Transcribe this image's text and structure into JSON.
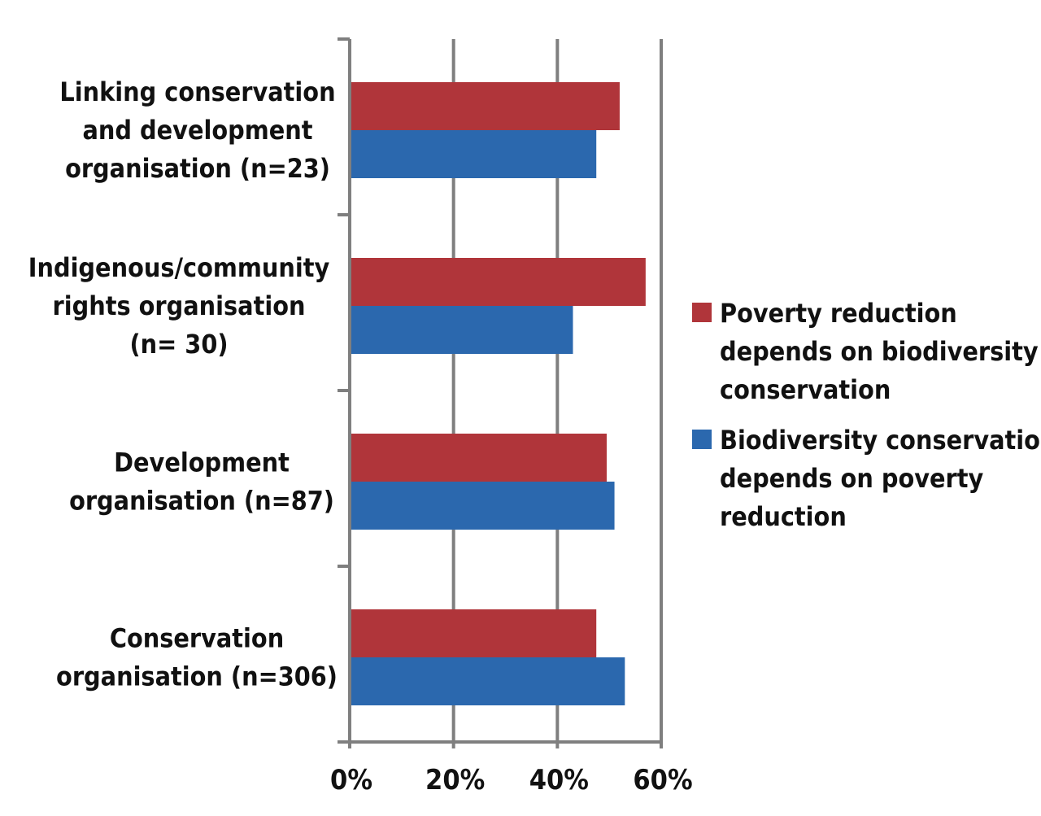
{
  "chart_data": {
    "type": "bar",
    "orientation": "horizontal",
    "title": "",
    "xlabel": "",
    "ylabel": "",
    "xlim": [
      0,
      60
    ],
    "x_ticks": [
      0,
      20,
      40,
      60
    ],
    "x_tick_labels": [
      "0%",
      "20%",
      "40%",
      "60%"
    ],
    "grid": true,
    "legend_position": "right",
    "categories": [
      {
        "label": "Linking conservation and development organisation (n=23)",
        "lines": [
          "Linking conservation",
          "and development",
          "organisation (n=23)"
        ]
      },
      {
        "label": "Indigenous/community rights organisation (n= 30)",
        "lines": [
          "Indigenous/community",
          "rights organisation",
          "(n= 30)"
        ]
      },
      {
        "label": "Development organisation (n=87)",
        "lines": [
          "Development",
          "organisation (n=87)"
        ]
      },
      {
        "label": "Conservation organisation (n=306)",
        "lines": [
          "Conservation",
          "organisation (n=306)"
        ]
      }
    ],
    "series": [
      {
        "name": "Poverty reduction depends on biodiversity conservation",
        "legend_lines": [
          "Poverty reduction",
          "depends on biodiversity",
          "conservation"
        ],
        "color": "#B0353A",
        "values": [
          52,
          57,
          49.5,
          47.5
        ]
      },
      {
        "name": "Biodiversity conservation depends on poverty reduction",
        "legend_lines": [
          "Biodiversity conservation",
          "depends on poverty",
          "reduction"
        ],
        "color": "#2B68AE",
        "values": [
          47.5,
          43,
          51,
          53
        ]
      }
    ],
    "axis_color": "#7F7F7F",
    "grid_color": "#7F7F7F"
  }
}
